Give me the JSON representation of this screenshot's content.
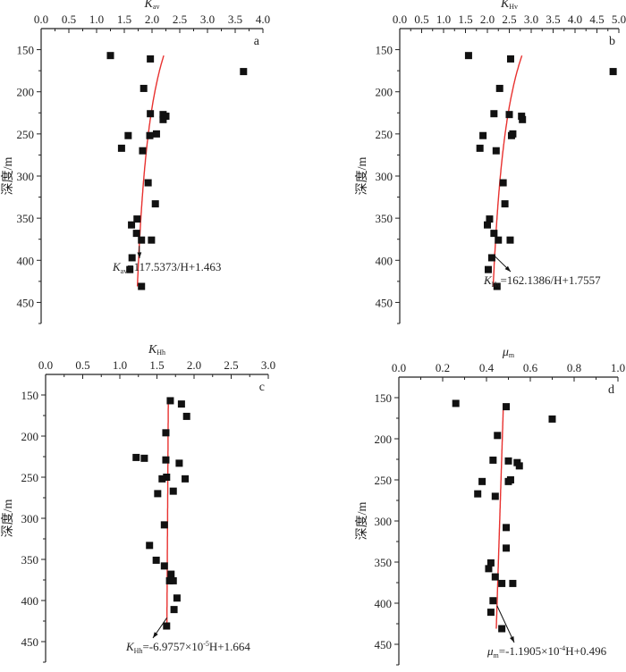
{
  "chart_data": [
    {
      "type": "scatter",
      "panel_letter": "a",
      "xlabel": {
        "main": "K",
        "sub": "av"
      },
      "ylabel": "深度/m",
      "xlim": [
        0,
        4
      ],
      "xticks": [
        "0.0",
        "0.5",
        "1.0",
        "1.5",
        "2.0",
        "2.5",
        "3.0",
        "3.5",
        "4.0"
      ],
      "ylim": [
        125,
        475
      ],
      "yticks": [
        "150",
        "200",
        "250",
        "300",
        "350",
        "400",
        "450"
      ],
      "points": [
        [
          1.25,
          157
        ],
        [
          1.97,
          161
        ],
        [
          3.65,
          176
        ],
        [
          1.85,
          196
        ],
        [
          1.97,
          226
        ],
        [
          2.2,
          227
        ],
        [
          2.25,
          229
        ],
        [
          2.2,
          233
        ],
        [
          2.08,
          250
        ],
        [
          1.57,
          252
        ],
        [
          1.96,
          252
        ],
        [
          1.45,
          267
        ],
        [
          1.83,
          270
        ],
        [
          1.93,
          308
        ],
        [
          2.06,
          333
        ],
        [
          1.73,
          351
        ],
        [
          1.63,
          358
        ],
        [
          1.72,
          368
        ],
        [
          1.81,
          376
        ],
        [
          1.99,
          376
        ],
        [
          1.64,
          397
        ],
        [
          1.6,
          411
        ],
        [
          1.81,
          431
        ]
      ],
      "fit": {
        "kind": "inverse",
        "a": 117.5373,
        "b": 1.463,
        "range": [
          157,
          431
        ]
      },
      "equation": {
        "main": "K",
        "sub": "av",
        "rest": "=117.5373/H+1.463",
        "sup": "",
        "tail": ""
      }
    },
    {
      "type": "scatter",
      "panel_letter": "b",
      "xlabel": {
        "main": "K",
        "sub": "Hv"
      },
      "ylabel": "深度/m",
      "xlim": [
        0,
        5
      ],
      "xticks": [
        "0.0",
        "0.5",
        "1.0",
        "1.5",
        "2.0",
        "2.5",
        "3.0",
        "3.5",
        "4.0",
        "4.5",
        "5.0"
      ],
      "ylim": [
        125,
        475
      ],
      "yticks": [
        "150",
        "200",
        "250",
        "300",
        "350",
        "400",
        "450"
      ],
      "points": [
        [
          1.57,
          157
        ],
        [
          2.53,
          161
        ],
        [
          4.87,
          176
        ],
        [
          2.28,
          196
        ],
        [
          2.15,
          226
        ],
        [
          2.5,
          227
        ],
        [
          2.78,
          229
        ],
        [
          2.8,
          233
        ],
        [
          2.58,
          250
        ],
        [
          1.9,
          252
        ],
        [
          2.55,
          252
        ],
        [
          1.83,
          267
        ],
        [
          2.2,
          270
        ],
        [
          2.36,
          308
        ],
        [
          2.4,
          333
        ],
        [
          2.05,
          351
        ],
        [
          2.0,
          358
        ],
        [
          2.15,
          368
        ],
        [
          2.25,
          376
        ],
        [
          2.52,
          376
        ],
        [
          2.1,
          397
        ],
        [
          2.02,
          411
        ],
        [
          2.22,
          431
        ]
      ],
      "fit": {
        "kind": "inverse",
        "a": 162.1386,
        "b": 1.7557,
        "range": [
          157,
          431
        ]
      },
      "equation": {
        "main": "K",
        "sub": "Hv",
        "rest": "=162.1386/H+1.7557",
        "sup": "",
        "tail": ""
      }
    },
    {
      "type": "scatter",
      "panel_letter": "c",
      "xlabel": {
        "main": "K",
        "sub": "Hh"
      },
      "ylabel": "深度/m",
      "xlim": [
        0,
        3
      ],
      "xticks": [
        "0.0",
        "0.5",
        "1.0",
        "1.5",
        "2.0",
        "2.5",
        "3.0"
      ],
      "ylim": [
        125,
        475
      ],
      "yticks": [
        "150",
        "200",
        "250",
        "300",
        "350",
        "400",
        "450"
      ],
      "points": [
        [
          1.68,
          157
        ],
        [
          1.83,
          161
        ],
        [
          1.9,
          176
        ],
        [
          1.62,
          196
        ],
        [
          1.22,
          226
        ],
        [
          1.33,
          227
        ],
        [
          1.62,
          229
        ],
        [
          1.8,
          233
        ],
        [
          1.63,
          250
        ],
        [
          1.57,
          252
        ],
        [
          1.88,
          252
        ],
        [
          1.72,
          267
        ],
        [
          1.51,
          270
        ],
        [
          1.6,
          308
        ],
        [
          1.4,
          333
        ],
        [
          1.49,
          351
        ],
        [
          1.6,
          358
        ],
        [
          1.69,
          368
        ],
        [
          1.67,
          376
        ],
        [
          1.72,
          376
        ],
        [
          1.77,
          397
        ],
        [
          1.73,
          411
        ],
        [
          1.63,
          431
        ]
      ],
      "fit": {
        "kind": "linear",
        "a": -6.9757e-05,
        "b": 1.664,
        "range": [
          157,
          431
        ]
      },
      "equation": {
        "main": "K",
        "sub": "Hh",
        "rest": "=-6.9757×10",
        "sup": "-5",
        "tail": "H+1.664"
      }
    },
    {
      "type": "scatter",
      "panel_letter": "d",
      "xlabel": {
        "main": "μ",
        "sub": "m"
      },
      "ylabel": "深度/m",
      "xlim": [
        0,
        1
      ],
      "xticks": [
        "0.0",
        "0.2",
        "0.4",
        "0.6",
        "0.8",
        "1.0"
      ],
      "ylim": [
        125,
        475
      ],
      "yticks": [
        "150",
        "200",
        "250",
        "300",
        "350",
        "400",
        "450"
      ],
      "points": [
        [
          0.26,
          157
        ],
        [
          0.49,
          161
        ],
        [
          0.7,
          176
        ],
        [
          0.45,
          196
        ],
        [
          0.43,
          226
        ],
        [
          0.5,
          227
        ],
        [
          0.54,
          229
        ],
        [
          0.55,
          233
        ],
        [
          0.51,
          250
        ],
        [
          0.38,
          252
        ],
        [
          0.5,
          252
        ],
        [
          0.36,
          267
        ],
        [
          0.44,
          270
        ],
        [
          0.49,
          308
        ],
        [
          0.49,
          333
        ],
        [
          0.42,
          351
        ],
        [
          0.41,
          358
        ],
        [
          0.44,
          368
        ],
        [
          0.47,
          376
        ],
        [
          0.52,
          376
        ],
        [
          0.43,
          397
        ],
        [
          0.42,
          411
        ],
        [
          0.47,
          431
        ]
      ],
      "fit": {
        "kind": "linear",
        "a": -0.00011905,
        "b": 0.496,
        "range": [
          157,
          431
        ]
      },
      "equation": {
        "main": "μ",
        "sub": "m",
        "rest": "=-1.1905×10",
        "sup": "-4",
        "tail": "H+0.496"
      }
    }
  ],
  "colors": {
    "fit_line": "#e8312f",
    "points": "#111111",
    "axis": "#222222"
  }
}
